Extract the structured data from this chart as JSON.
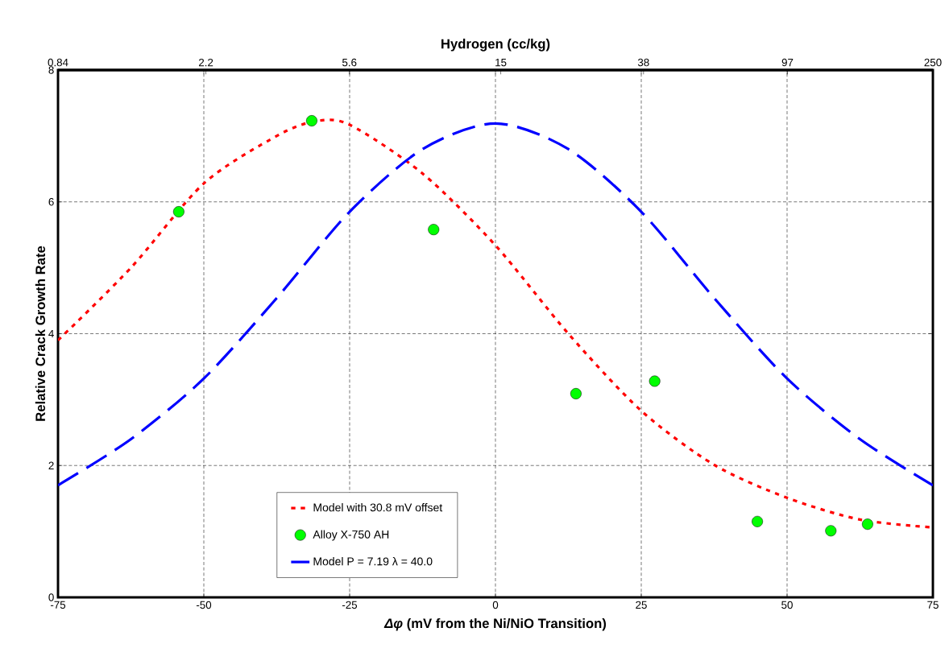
{
  "chart_data": {
    "type": "line",
    "xlabel": "*Δφ* (mV from the Ni/NiO Transition)",
    "ylabel": "Relative Crack Growth Rate",
    "x2label": "Hydrogen (cc/kg)",
    "xlim": [
      -75,
      75
    ],
    "xticks": [
      -75,
      -50,
      -25,
      0,
      25,
      50,
      75
    ],
    "ylim": [
      0,
      8
    ],
    "yticks": [
      0,
      2,
      4,
      6,
      8
    ],
    "x2lim": [
      0.84,
      250
    ],
    "x2ticks": [
      0.84,
      2.2,
      5.6,
      15,
      38,
      97,
      250
    ],
    "log": "x2",
    "grid": true,
    "legend": "bottom",
    "series": [
      {
        "name": "Model with 30.8 mV offset",
        "line_style": "dotted",
        "marker": "none",
        "color": "#ff0000",
        "x": [
          -75,
          -62.5,
          -50,
          -37.5,
          -31,
          -25,
          -12.5,
          0,
          12.5,
          25,
          37.5,
          50,
          62.5,
          75
        ],
        "values": [
          3.9,
          5.0,
          6.28,
          7.0,
          7.22,
          7.17,
          6.43,
          5.34,
          4.0,
          2.83,
          2.01,
          1.51,
          1.18,
          1.06
        ]
      },
      {
        "name": "Alloy X-750 AH",
        "type": "scatter",
        "marker": "circle",
        "color": "#00ff00",
        "x": [
          -54.3,
          -31.5,
          -10.6,
          13.8,
          27.3,
          44.9,
          57.5,
          63.8
        ],
        "values": [
          5.85,
          7.23,
          5.58,
          3.09,
          3.28,
          1.15,
          1.01,
          1.11
        ]
      },
      {
        "name": "Model P = 7.19 λ = 40.0",
        "line_style": "dashed",
        "marker": "none",
        "color": "#0000ff",
        "x": [
          -75,
          -62.5,
          -50,
          -37.5,
          -25,
          -12.5,
          0,
          12.5,
          25,
          37.5,
          50,
          62.5,
          75
        ],
        "values": [
          1.7,
          2.4,
          3.32,
          4.54,
          5.85,
          6.8,
          7.19,
          6.8,
          5.85,
          4.54,
          3.32,
          2.4,
          1.7
        ]
      }
    ]
  }
}
